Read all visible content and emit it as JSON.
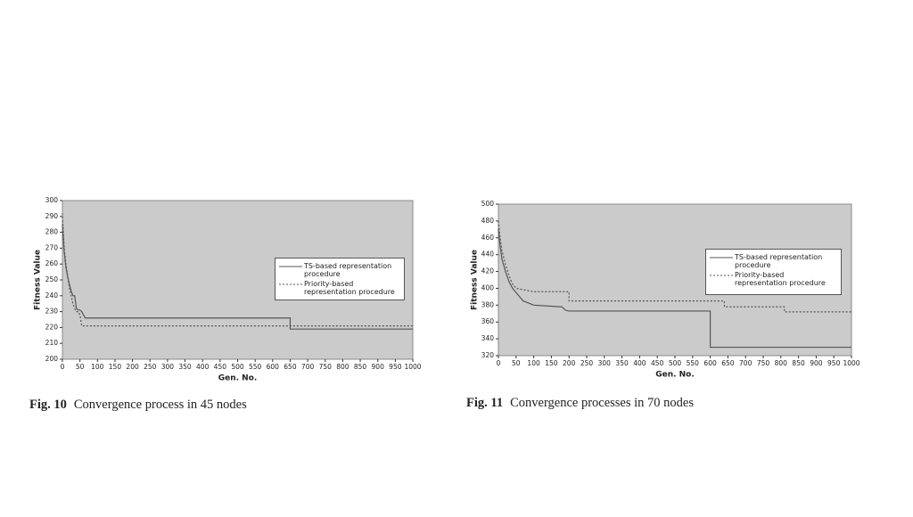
{
  "chart_data": [
    {
      "type": "line",
      "caption_label": "Fig. 10",
      "caption": "Convergence process in 45 nodes",
      "xlabel": "Gen. No.",
      "ylabel": "Fitness Value",
      "xlim": [
        0,
        1000
      ],
      "xticks": [
        0,
        50,
        100,
        150,
        200,
        250,
        300,
        350,
        400,
        450,
        500,
        550,
        600,
        650,
        700,
        750,
        800,
        850,
        900,
        950,
        1000
      ],
      "ylim": [
        200,
        300
      ],
      "yticks": [
        200,
        210,
        220,
        230,
        240,
        250,
        260,
        270,
        280,
        290,
        300
      ],
      "grid": false,
      "legend": "right",
      "series": [
        {
          "name": "TS-based representation procedure",
          "color": "#555555",
          "line_style": "solid",
          "x": [
            0,
            5,
            10,
            15,
            20,
            25,
            30,
            35,
            40,
            45,
            50,
            55,
            60,
            65,
            70,
            650,
            650,
            1000
          ],
          "values": [
            285,
            268,
            258,
            252,
            247,
            243,
            240,
            240,
            232,
            231,
            231,
            230,
            228,
            226,
            226,
            226,
            219,
            219
          ]
        },
        {
          "name": "Priority-based representation procedure",
          "color": "#555555",
          "line_style": "dashed",
          "x": [
            0,
            5,
            10,
            15,
            20,
            25,
            30,
            35,
            40,
            45,
            50,
            55,
            1000
          ],
          "values": [
            292,
            270,
            260,
            252,
            245,
            240,
            235,
            232,
            230,
            230,
            228,
            221,
            221
          ]
        }
      ]
    },
    {
      "type": "line",
      "caption_label": "Fig. 11",
      "caption": "Convergence processes in 70 nodes",
      "xlabel": "Gen. No.",
      "ylabel": "Fitness Value",
      "xlim": [
        0,
        1000
      ],
      "xticks": [
        0,
        50,
        100,
        150,
        200,
        250,
        300,
        350,
        400,
        450,
        500,
        550,
        600,
        650,
        700,
        750,
        800,
        850,
        900,
        950,
        1000
      ],
      "ylim": [
        320,
        500
      ],
      "yticks": [
        320,
        340,
        360,
        380,
        400,
        420,
        440,
        460,
        480,
        500
      ],
      "grid": false,
      "legend": "right",
      "series": [
        {
          "name": "TS-based representation procedure",
          "color": "#555555",
          "line_style": "solid",
          "x": [
            0,
            5,
            10,
            20,
            30,
            40,
            50,
            70,
            100,
            180,
            190,
            200,
            600,
            600,
            1000
          ],
          "values": [
            470,
            450,
            435,
            420,
            408,
            400,
            395,
            385,
            380,
            378,
            374,
            373,
            373,
            330,
            330
          ]
        },
        {
          "name": "Priority-based representation procedure",
          "color": "#555555",
          "line_style": "dashed",
          "x": [
            0,
            5,
            10,
            20,
            30,
            40,
            50,
            100,
            200,
            200,
            640,
            640,
            810,
            810,
            1000
          ],
          "values": [
            480,
            460,
            445,
            428,
            415,
            405,
            400,
            396,
            396,
            385,
            385,
            378,
            378,
            372,
            372
          ]
        }
      ]
    }
  ]
}
